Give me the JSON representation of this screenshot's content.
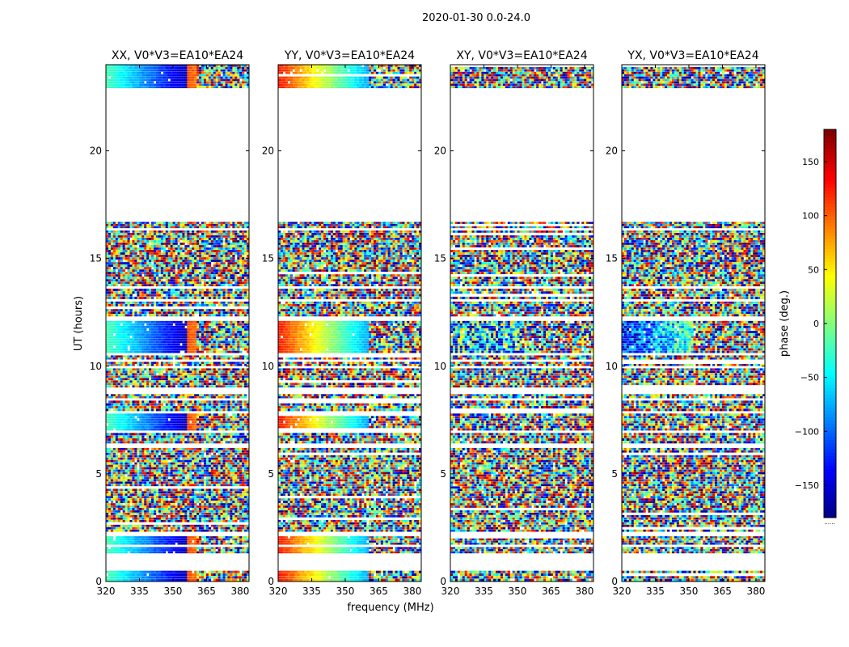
{
  "suptitle": "2020-01-30 0.0-24.0",
  "colorscale": "jet",
  "chart_data": {
    "type": "heatmap",
    "title": "2020-01-30 0.0-24.0",
    "xlabel": "frequency (MHz)",
    "ylabel": "UT (hours)",
    "xlim": [
      320,
      384
    ],
    "ylim": [
      0,
      24
    ],
    "x_ticks": [
      320,
      335,
      350,
      365,
      380
    ],
    "y_ticks": [
      0,
      5,
      10,
      15,
      20
    ],
    "colorbar": {
      "label": "phase (deg.)",
      "range": [
        -180,
        180
      ],
      "ticks": [
        150,
        100,
        50,
        0,
        -50,
        -100,
        -150
      ],
      "tick_labels": [
        "150",
        "100",
        "50",
        "0",
        "−50",
        "−100",
        "−150"
      ],
      "footer": "......"
    },
    "panels": [
      {
        "title": "XX, V0*V3=EA10*EA24",
        "pattern": "XX"
      },
      {
        "title": "YY, V0*V3=EA10*EA24",
        "pattern": "YY"
      },
      {
        "title": "XY, V0*V3=EA10*EA24",
        "pattern": "XY"
      },
      {
        "title": "YX, V0*V3=EA10*EA24",
        "pattern": "YX"
      }
    ],
    "data_segments_hours": [
      [
        0.0,
        0.5
      ],
      [
        1.3,
        1.6
      ],
      [
        1.7,
        2.1
      ],
      [
        2.3,
        6.2
      ],
      [
        6.4,
        6.9
      ],
      [
        7.0,
        7.8
      ],
      [
        7.9,
        8.4
      ],
      [
        8.5,
        8.7
      ],
      [
        9.0,
        9.9
      ],
      [
        10.0,
        10.2
      ],
      [
        10.3,
        10.5
      ],
      [
        10.6,
        12.1
      ],
      [
        12.3,
        13.0
      ],
      [
        13.1,
        13.6
      ],
      [
        13.7,
        16.3
      ],
      [
        16.4,
        16.7
      ],
      [
        22.9,
        24.0
      ]
    ]
  }
}
